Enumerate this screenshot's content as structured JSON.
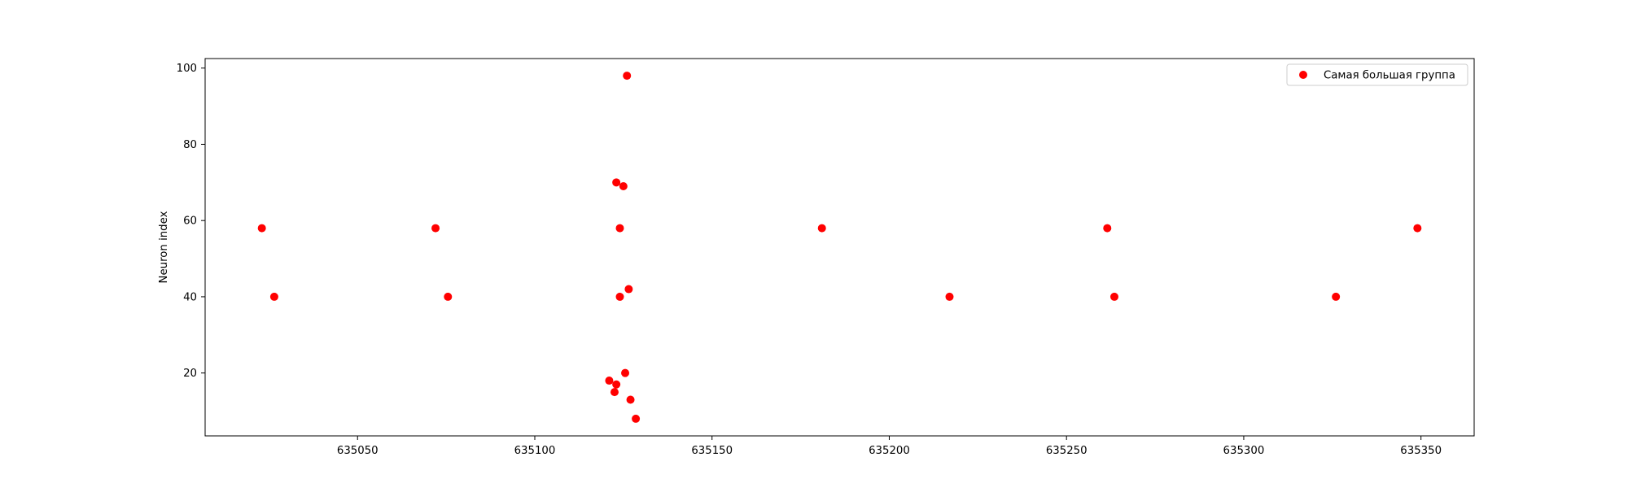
{
  "chart_data": {
    "type": "scatter",
    "title": "",
    "xlabel": "",
    "ylabel": "Neuron index",
    "xlim": [
      635007,
      635365
    ],
    "ylim": [
      3.5,
      102.5
    ],
    "xticks": [
      635050,
      635100,
      635150,
      635200,
      635250,
      635300,
      635350
    ],
    "xtick_labels": [
      "635050",
      "635100",
      "635150",
      "635200",
      "635250",
      "635300",
      "635350"
    ],
    "yticks": [
      20,
      40,
      60,
      80,
      100
    ],
    "ytick_labels": [
      "20",
      "40",
      "60",
      "80",
      "100"
    ],
    "grid": false,
    "legend_position": "top-right",
    "series": [
      {
        "name": "Самая большая группа",
        "color": "#ff0000",
        "marker": "circle",
        "points": [
          {
            "x": 635023,
            "y": 58
          },
          {
            "x": 635026.5,
            "y": 40
          },
          {
            "x": 635072,
            "y": 58
          },
          {
            "x": 635075.5,
            "y": 40
          },
          {
            "x": 635121,
            "y": 18
          },
          {
            "x": 635122.5,
            "y": 15
          },
          {
            "x": 635123,
            "y": 17
          },
          {
            "x": 635123,
            "y": 70
          },
          {
            "x": 635124,
            "y": 58
          },
          {
            "x": 635124,
            "y": 40
          },
          {
            "x": 635125,
            "y": 69
          },
          {
            "x": 635125.5,
            "y": 20
          },
          {
            "x": 635126,
            "y": 98
          },
          {
            "x": 635126.5,
            "y": 42
          },
          {
            "x": 635127,
            "y": 13
          },
          {
            "x": 635128.5,
            "y": 8
          },
          {
            "x": 635181,
            "y": 58
          },
          {
            "x": 635217,
            "y": 40
          },
          {
            "x": 635261.5,
            "y": 58
          },
          {
            "x": 635263.5,
            "y": 40
          },
          {
            "x": 635326,
            "y": 40
          },
          {
            "x": 635349,
            "y": 58
          }
        ]
      }
    ]
  }
}
